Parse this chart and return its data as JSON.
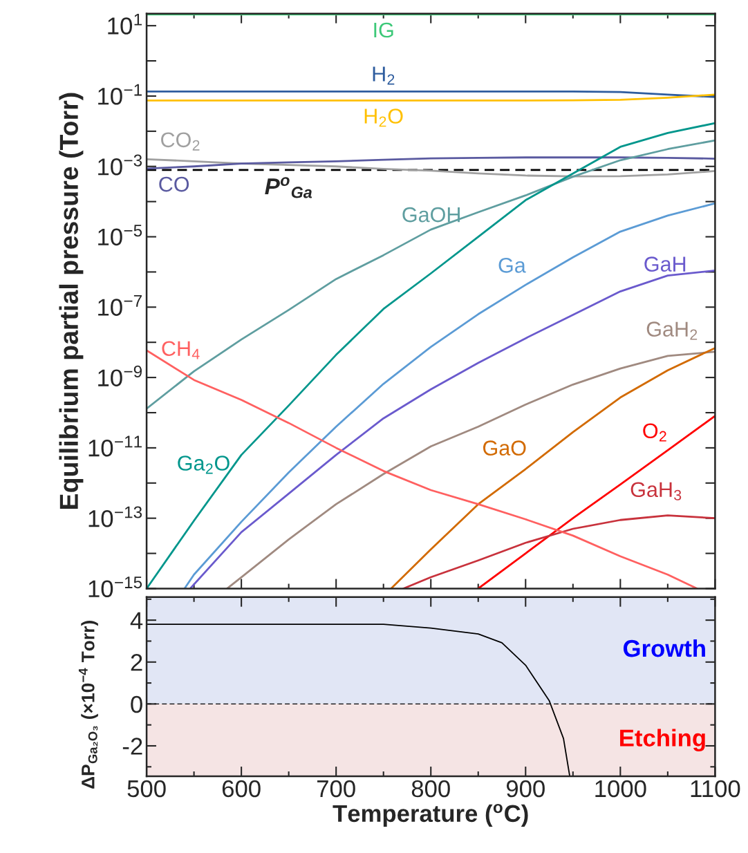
{
  "chart_data": [
    {
      "type": "line",
      "ylabel": "Equilibrium partial pressure (Torr)",
      "log": "y",
      "tick_labels": "y",
      "x": [
        500,
        550,
        600,
        650,
        700,
        750,
        800,
        850,
        900,
        950,
        1000,
        1050,
        1100
      ],
      "xlim": [
        500,
        1100
      ],
      "xticks": [
        500,
        600,
        700,
        800,
        900,
        1000,
        1100
      ],
      "ylim": [
        1e-15,
        22
      ],
      "yticks": [
        {
          "value": 10,
          "label": "10$^{1}$"
        },
        {
          "value": 1,
          "label": null
        },
        {
          "value": 0.1,
          "label": "10$^{−1}$"
        },
        {
          "value": 0.01,
          "label": null
        },
        {
          "value": 0.001,
          "label": "10$^{−3}$"
        },
        {
          "value": 0.0001,
          "label": null
        },
        {
          "value": 1e-05,
          "label": "10$^{−5}$"
        },
        {
          "value": 1e-06,
          "label": null
        },
        {
          "value": 1e-07,
          "label": "10$^{−7}$"
        },
        {
          "value": 1e-08,
          "label": null
        },
        {
          "value": 1e-09,
          "label": "10$^{−9}$"
        },
        {
          "value": 1e-10,
          "label": null
        },
        {
          "value": 1e-11,
          "label": "10$^{−11}$"
        },
        {
          "value": 1e-12,
          "label": null
        },
        {
          "value": 1e-13,
          "label": "10$^{−13}$"
        },
        {
          "value": 1e-14,
          "label": null
        },
        {
          "value": 1e-15,
          "label": "10$^{−15}$"
        }
      ],
      "series": [
        {
          "name": "IG",
          "color": "#3cc878",
          "values": [
            21,
            21,
            21,
            21,
            21,
            21,
            21,
            21,
            21,
            21,
            21,
            21,
            21
          ]
        },
        {
          "name": "H$_{2}$",
          "color": "#2e5c9e",
          "values": [
            0.135,
            0.135,
            0.135,
            0.135,
            0.135,
            0.135,
            0.135,
            0.135,
            0.135,
            0.135,
            0.13,
            0.11,
            0.094
          ]
        },
        {
          "name": "H$_{2}$O",
          "color": "#ffc000",
          "values": [
            0.075,
            0.075,
            0.075,
            0.075,
            0.075,
            0.075,
            0.075,
            0.075,
            0.075,
            0.076,
            0.078,
            0.09,
            0.11
          ]
        },
        {
          "name": "CO$_{2}$",
          "color": "#a0a0a0",
          "values": [
            0.0016,
            0.0014,
            0.0012,
            0.0011,
            0.001,
            0.00085,
            0.00076,
            0.00063,
            0.00055,
            0.00052,
            0.00053,
            0.00059,
            0.00074
          ]
        },
        {
          "name": "CO",
          "color": "#5a5aa0",
          "values": [
            0.00087,
            0.001,
            0.0012,
            0.0013,
            0.0014,
            0.00155,
            0.0017,
            0.00175,
            0.0018,
            0.0018,
            0.0018,
            0.00175,
            0.00166
          ]
        },
        {
          "name": "GaOH",
          "color": "#5f9ea0",
          "values": [
            1.3e-10,
            1.5e-09,
            1.2e-08,
            8.3e-08,
            6.3e-07,
            3e-06,
            1.6e-05,
            5e-05,
            0.00015,
            0.00051,
            0.0015,
            0.0031,
            0.0055
          ]
        },
        {
          "name": "Ga$_{2}$O",
          "color": "#00968c",
          "values": [
            1e-15,
            8.5e-14,
            6.3e-12,
            1.6e-10,
            4.4e-09,
            8.9e-08,
            9.1e-07,
            1e-05,
            0.00011,
            0.00063,
            0.0036,
            0.0089,
            0.017
          ]
        },
        {
          "name": "Ga",
          "color": "#5b9bd5",
          "x": [
            540,
            550,
            600,
            650,
            700,
            750,
            800,
            850,
            900,
            950,
            1000,
            1050,
            1100
          ],
          "values": [
            1e-15,
            2.5e-15,
            7.9e-14,
            2e-12,
            4e-11,
            6.6e-10,
            7.4e-09,
            6.3e-08,
            4.3e-07,
            2.6e-06,
            1.4e-05,
            4e-05,
            8.9e-05
          ]
        },
        {
          "name": "GaH",
          "color": "#6a5acd",
          "x": [
            546,
            600,
            650,
            700,
            750,
            800,
            850,
            900,
            950,
            1000,
            1050,
            1100
          ],
          "values": [
            1e-15,
            4e-14,
            5e-13,
            6.3e-12,
            6.9e-11,
            4.6e-10,
            2.6e-09,
            1.3e-08,
            6e-08,
            2.8e-07,
            7.9e-07,
            1.1e-06
          ]
        },
        {
          "name": "GaH$_{2}$",
          "color": "#a08a80",
          "x": [
            585,
            600,
            650,
            700,
            750,
            800,
            850,
            900,
            950,
            1000,
            1050,
            1100
          ],
          "values": [
            1e-15,
            2.1e-15,
            2.5e-14,
            2.5e-13,
            1.8e-12,
            1.1e-11,
            4e-11,
            1.7e-10,
            6.3e-10,
            1.8e-09,
            4.1e-09,
            5.4e-09
          ]
        },
        {
          "name": "GaO",
          "color": "#d26a00",
          "x": [
            758,
            800,
            850,
            900,
            950,
            1000,
            1050,
            1100
          ],
          "values": [
            1e-15,
            1.3e-14,
            2.5e-13,
            2.5e-12,
            2.8e-11,
            2.7e-10,
            1.6e-09,
            6.9e-09
          ]
        },
        {
          "name": "O$_{2}$",
          "color": "#ff0000",
          "x": [
            850,
            900,
            950,
            1000,
            1050,
            1100
          ],
          "values": [
            1e-15,
            1e-14,
            1e-13,
            9.1e-13,
            8.5e-12,
            8.1e-11
          ]
        },
        {
          "name": "GaH$_{3}$",
          "color": "#c8323c",
          "x": [
            771,
            800,
            850,
            900,
            950,
            1000,
            1050,
            1100
          ],
          "values": [
            1e-15,
            2.1e-15,
            6.3e-15,
            2e-14,
            5e-14,
            8.9e-14,
            1.2e-13,
            1e-13
          ]
        },
        {
          "name": "CH$_{4}$",
          "color": "#ff6060",
          "x": [
            500,
            550,
            600,
            650,
            700,
            750,
            800,
            850,
            900,
            950,
            1000,
            1050,
            1081
          ],
          "values": [
            5.9e-09,
            8.5e-10,
            2.3e-10,
            5.1e-11,
            1e-11,
            2.2e-12,
            6.3e-13,
            2.5e-13,
            9.3e-14,
            3.2e-14,
            8.3e-15,
            2.5e-15,
            1e-15
          ]
        }
      ],
      "ref_lines": [
        {
          "axis": "y",
          "value": 0.00079,
          "label": "P$^{o}$$_{Ga}$",
          "color": "#000000",
          "line_style": "dashed"
        }
      ]
    },
    {
      "type": "line",
      "xlabel": "Temperature ($^{o}$C)",
      "ylabel": "ΔP$_{Ga₂O₃}$ (×10$^{−4}$ Torr)",
      "x": [
        500,
        550,
        600,
        650,
        700,
        750,
        800,
        850,
        875,
        900,
        925,
        940,
        946.6
      ],
      "xlim": [
        500,
        1100
      ],
      "xticks": [
        500,
        600,
        700,
        800,
        900,
        1000,
        1100
      ],
      "ylim": [
        -3.45,
        5.1
      ],
      "yticks": [
        -2,
        0,
        2,
        4
      ],
      "series": [
        {
          "color": "#000000",
          "values": [
            3.8,
            3.8,
            3.8,
            3.8,
            3.8,
            3.8,
            3.62,
            3.34,
            2.92,
            1.85,
            0.15,
            -1.65,
            -3.45
          ]
        }
      ],
      "ref_lines": [
        {
          "axis": "y",
          "value": 0,
          "color": "#000000",
          "line_style": "dashed"
        }
      ],
      "bands": [
        {
          "axis": "y",
          "from": 0,
          "to": 5.1,
          "label": "Growth",
          "color": "#e1e6f5"
        },
        {
          "axis": "y",
          "from": -3.45,
          "to": 0,
          "label": "Etching",
          "color": "#f5e4e4"
        }
      ]
    }
  ]
}
